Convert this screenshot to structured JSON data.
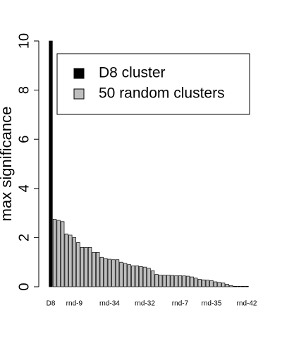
{
  "chart_data": {
    "type": "bar",
    "ylabel": "max significance",
    "categories": [
      "D8",
      null,
      null,
      null,
      null,
      null,
      "rnd-9",
      null,
      null,
      null,
      null,
      null,
      null,
      null,
      null,
      "rnd-34",
      null,
      null,
      null,
      null,
      null,
      null,
      null,
      null,
      "rnd-32",
      null,
      null,
      null,
      null,
      null,
      null,
      null,
      null,
      "rnd-7",
      null,
      null,
      null,
      null,
      null,
      null,
      null,
      "rnd-35",
      null,
      null,
      null,
      null,
      null,
      null,
      null,
      null,
      "rnd-42"
    ],
    "series": [
      {
        "name": "D8 cluster",
        "color": "#000000",
        "values": [
          10,
          null,
          null,
          null,
          null,
          null,
          null,
          null,
          null,
          null,
          null,
          null,
          null,
          null,
          null,
          null,
          null,
          null,
          null,
          null,
          null,
          null,
          null,
          null,
          null,
          null,
          null,
          null,
          null,
          null,
          null,
          null,
          null,
          null,
          null,
          null,
          null,
          null,
          null,
          null,
          null,
          null,
          null,
          null,
          null,
          null,
          null,
          null,
          null,
          null,
          null
        ]
      },
      {
        "name": "50 random clusters",
        "color": "#bebebe",
        "values": [
          null,
          2.75,
          2.7,
          2.65,
          2.15,
          2.1,
          2.0,
          1.8,
          1.6,
          1.6,
          1.6,
          1.4,
          1.4,
          1.2,
          1.15,
          1.12,
          1.1,
          1.1,
          1.0,
          0.95,
          0.9,
          0.85,
          0.85,
          0.82,
          0.8,
          0.75,
          0.65,
          0.5,
          0.47,
          0.47,
          0.47,
          0.46,
          0.45,
          0.45,
          0.44,
          0.43,
          0.4,
          0.35,
          0.3,
          0.28,
          0.27,
          0.25,
          0.2,
          0.18,
          0.15,
          0.1,
          0.05,
          0.02,
          0.02,
          0.02,
          0.02
        ]
      }
    ],
    "ylim": [
      0,
      10
    ],
    "yticks": [
      0,
      2,
      4,
      6,
      8,
      10
    ],
    "legend": "top-right"
  }
}
